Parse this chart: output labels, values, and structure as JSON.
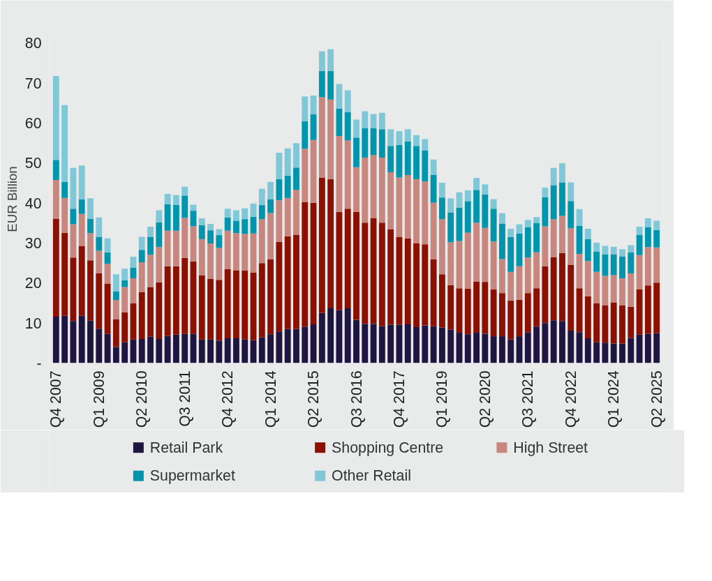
{
  "chart_data": {
    "type": "bar",
    "stacked": true,
    "ylabel": "EUR Billion",
    "categories": [
      "Q4 2007",
      null,
      null,
      null,
      null,
      "Q1 2009",
      null,
      null,
      null,
      null,
      "Q2 2010",
      null,
      null,
      null,
      null,
      "Q3 2011",
      null,
      null,
      null,
      null,
      "Q4 2012",
      null,
      null,
      null,
      null,
      "Q1 2014",
      null,
      null,
      null,
      null,
      "Q2 2015",
      null,
      null,
      null,
      null,
      "Q3 2016",
      null,
      null,
      null,
      null,
      "Q4 2017",
      null,
      null,
      null,
      null,
      "Q1 2019",
      null,
      null,
      null,
      null,
      "Q2 2020",
      null,
      null,
      null,
      null,
      "Q3 2021",
      null,
      null,
      null,
      null,
      "Q4 2022",
      null,
      null,
      null,
      null,
      "Q1 2024",
      null,
      null,
      null,
      null,
      "Q2 2025"
    ],
    "ylim": [
      0,
      82
    ],
    "yticks": [
      {
        "value": 0,
        "label": "-"
      },
      10,
      20,
      30,
      40,
      50,
      60,
      70,
      80
    ],
    "grid": false,
    "legend": "bottom",
    "series": [
      {
        "name": "Retail Park",
        "color": "#1e1540",
        "values": [
          11.6,
          11.8,
          10.5,
          11.8,
          10.6,
          8.6,
          7.3,
          4.0,
          5.2,
          5.9,
          6.0,
          6.6,
          6.0,
          6.8,
          7.1,
          7.3,
          7.3,
          5.9,
          5.9,
          5.6,
          6.2,
          6.2,
          5.9,
          5.7,
          6.4,
          7.2,
          7.9,
          8.5,
          8.5,
          9.1,
          9.7,
          12.5,
          13.7,
          13.2,
          13.7,
          10.8,
          9.8,
          9.8,
          9.2,
          9.6,
          9.6,
          9.7,
          9.0,
          9.4,
          9.2,
          8.9,
          8.4,
          7.6,
          7.2,
          7.6,
          7.3,
          6.7,
          6.7,
          5.9,
          6.7,
          7.7,
          9.1,
          10.0,
          10.7,
          10.5,
          8.1,
          7.7,
          6.2,
          5.2,
          5.1,
          4.9,
          4.9,
          6.3,
          7.1,
          7.3,
          7.5
        ]
      },
      {
        "name": "Shopping Centre",
        "color": "#8b1000",
        "values": [
          24.5,
          20.8,
          15.9,
          17.5,
          15.1,
          13.8,
          12.6,
          7.0,
          7.5,
          9.0,
          11.7,
          12.4,
          14.2,
          17.4,
          17.1,
          19.0,
          18.1,
          16.0,
          15.2,
          15.2,
          17.3,
          17.0,
          17.2,
          16.9,
          18.6,
          18.7,
          22.4,
          23.2,
          23.6,
          31.2,
          30.4,
          33.9,
          32.3,
          24.6,
          24.9,
          27.0,
          25.3,
          26.5,
          25.9,
          23.9,
          21.9,
          21.5,
          20.9,
          20.3,
          16.8,
          13.3,
          11.1,
          11.1,
          11.4,
          12.8,
          13.0,
          11.7,
          10.8,
          9.7,
          9.1,
          9.8,
          9.6,
          14.2,
          15.8,
          17.0,
          16.5,
          11.0,
          10.5,
          9.7,
          9.3,
          10.3,
          9.5,
          7.8,
          11.3,
          12.1,
          12.6
        ]
      },
      {
        "name": "High Street",
        "color": "#c8877e",
        "values": [
          9.7,
          8.7,
          8.3,
          8.0,
          6.8,
          5.7,
          4.9,
          4.8,
          6.3,
          6.3,
          7.5,
          8.1,
          8.8,
          8.9,
          8.9,
          10.0,
          8.8,
          9.1,
          8.8,
          8.0,
          9.6,
          9.3,
          9.2,
          9.8,
          11.0,
          11.6,
          10.4,
          9.6,
          11.2,
          13.3,
          15.7,
          20.1,
          19.9,
          19.0,
          17.1,
          11.2,
          16.3,
          15.7,
          16.3,
          14.2,
          14.9,
          15.8,
          16.1,
          15.7,
          14.1,
          13.8,
          10.7,
          11.8,
          14.0,
          14.7,
          13.5,
          12.0,
          8.5,
          7.2,
          8.4,
          8.9,
          9.0,
          10.0,
          9.5,
          9.3,
          9.1,
          8.6,
          8.8,
          7.9,
          7.4,
          6.8,
          6.8,
          8.3,
          8.6,
          9.6,
          8.8
        ]
      },
      {
        "name": "Supermarket",
        "color": "#0094ad",
        "values": [
          5.0,
          4.0,
          3.9,
          3.6,
          3.6,
          3.5,
          2.9,
          2.1,
          1.7,
          2.6,
          3.1,
          4.5,
          6.2,
          6.6,
          6.4,
          5.6,
          3.9,
          3.5,
          3.3,
          3.2,
          3.3,
          3.1,
          3.7,
          4.2,
          3.5,
          3.5,
          5.3,
          5.6,
          5.6,
          6.9,
          6.4,
          6.5,
          7.1,
          6.9,
          7.1,
          7.4,
          7.3,
          6.7,
          7.1,
          6.6,
          8.1,
          8.5,
          8.3,
          7.8,
          7.0,
          5.4,
          7.5,
          8.4,
          7.9,
          8.2,
          8.4,
          8.2,
          8.9,
          8.7,
          8.2,
          7.6,
          7.3,
          7.3,
          8.5,
          8.4,
          6.8,
          7.0,
          5.5,
          5.1,
          5.4,
          5.2,
          5.4,
          5.3,
          5.0,
          5.0,
          4.4
        ]
      },
      {
        "name": "Other Retail",
        "color": "#80c8d8",
        "values": [
          21.0,
          19.2,
          10.2,
          8.5,
          5.1,
          4.8,
          3.5,
          4.3,
          2.9,
          2.8,
          3.3,
          2.5,
          3.0,
          2.6,
          2.5,
          2.2,
          1.5,
          1.7,
          1.6,
          1.5,
          2.2,
          2.6,
          2.7,
          3.3,
          4.1,
          4.3,
          6.6,
          6.8,
          6.1,
          6.2,
          4.7,
          5.0,
          5.5,
          6.1,
          5.4,
          4.5,
          4.3,
          3.6,
          4.1,
          4.2,
          3.5,
          3.0,
          2.7,
          2.8,
          3.8,
          3.7,
          3.5,
          3.8,
          2.7,
          3.0,
          2.5,
          2.4,
          2.6,
          2.1,
          2.3,
          1.8,
          1.5,
          2.4,
          4.3,
          4.8,
          4.7,
          4.2,
          2.6,
          2.2,
          2.1,
          1.9,
          1.9,
          1.8,
          2.1,
          2.2,
          2.3
        ]
      }
    ]
  }
}
